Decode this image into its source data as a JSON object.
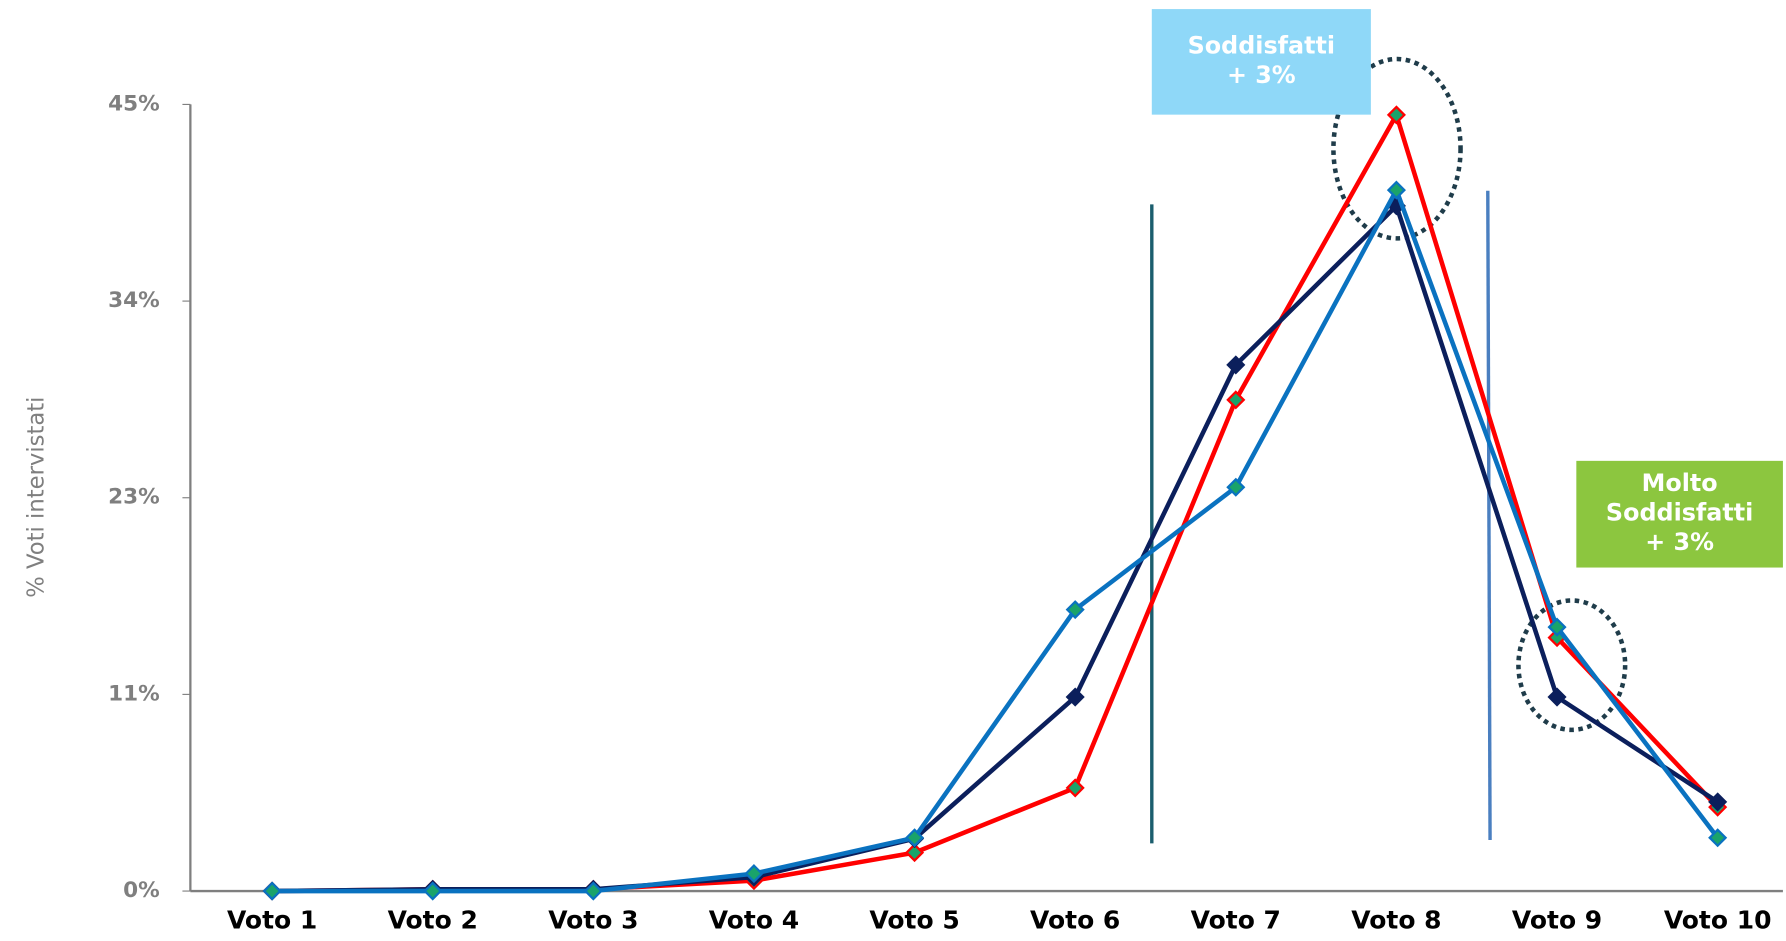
{
  "chart_data": {
    "type": "line",
    "y_label": "% Voti intervistati",
    "categories": [
      "Voto 1",
      "Voto 2",
      "Voto 3",
      "Voto 4",
      "Voto 5",
      "Voto 6",
      "Voto 7",
      "Voto 8",
      "Voto 9",
      "Voto 10"
    ],
    "series": [
      {
        "color": "#ff0000",
        "marker_fill": "#1aa36a",
        "values": [
          0,
          0.1,
          0.1,
          0.6,
          2.2,
          5.9,
          28.1,
          44.4,
          14.5,
          4.8
        ]
      },
      {
        "color": "#0b1f5c",
        "marker_fill": "#0b1f5c",
        "values": [
          0,
          0.1,
          0.1,
          0.8,
          3.0,
          11.1,
          30.1,
          39.2,
          11.1,
          5.1
        ]
      },
      {
        "color": "#0a72c0",
        "marker_fill": "#1aa36a",
        "values": [
          0,
          0,
          0,
          1.0,
          3.05,
          16.1,
          23.1,
          40.1,
          15.1,
          3.05
        ]
      }
    ],
    "ylim": [
      0,
      45
    ],
    "yticks": [
      {
        "value": 0,
        "label": "0%"
      },
      {
        "value": 11.25,
        "label": "11%"
      },
      {
        "value": 22.5,
        "label": "23%"
      },
      {
        "value": 33.75,
        "label": "34%"
      },
      {
        "value": 45,
        "label": "45%"
      }
    ],
    "annotations": [
      {
        "lines": [
          "Soddisfatti",
          "+ 3%"
        ],
        "color": "#8fd8f8"
      },
      {
        "lines": [
          "Molto",
          "Soddisfatti",
          "+ 3%"
        ],
        "color": "#8cc63f"
      }
    ]
  }
}
